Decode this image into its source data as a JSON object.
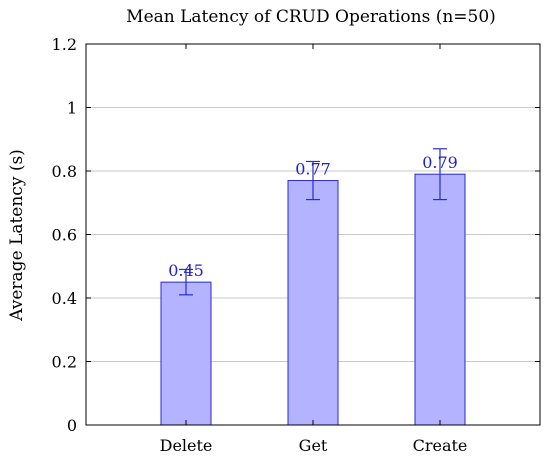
{
  "chart_data": {
    "type": "bar",
    "title": "Mean Latency of CRUD Operations (n=50)",
    "xlabel": "",
    "ylabel": "Average Latency (s)",
    "categories": [
      "Delete",
      "Get",
      "Create"
    ],
    "values": [
      0.45,
      0.77,
      0.79
    ],
    "data_labels": [
      "0.45",
      "0.77",
      "0.79"
    ],
    "error_bars": [
      {
        "low": 0.41,
        "high": 0.49
      },
      {
        "low": 0.71,
        "high": 0.83
      },
      {
        "low": 0.71,
        "high": 0.87
      }
    ],
    "ylim": [
      0,
      1.2
    ],
    "yticks": [
      0,
      0.2,
      0.4,
      0.6,
      0.8,
      1,
      1.2
    ],
    "ytick_labels": [
      "0",
      "0.2",
      "0.4",
      "0.6",
      "0.8",
      "1",
      "1.2"
    ],
    "grid": true,
    "colors": {
      "bar_fill": "#b3b3ff",
      "bar_stroke": "#2a2ad0",
      "error_bar": "#2a2ad0",
      "data_label": "#1f1fcc",
      "grid": "#c8c8c8",
      "axis": "#000000"
    }
  }
}
